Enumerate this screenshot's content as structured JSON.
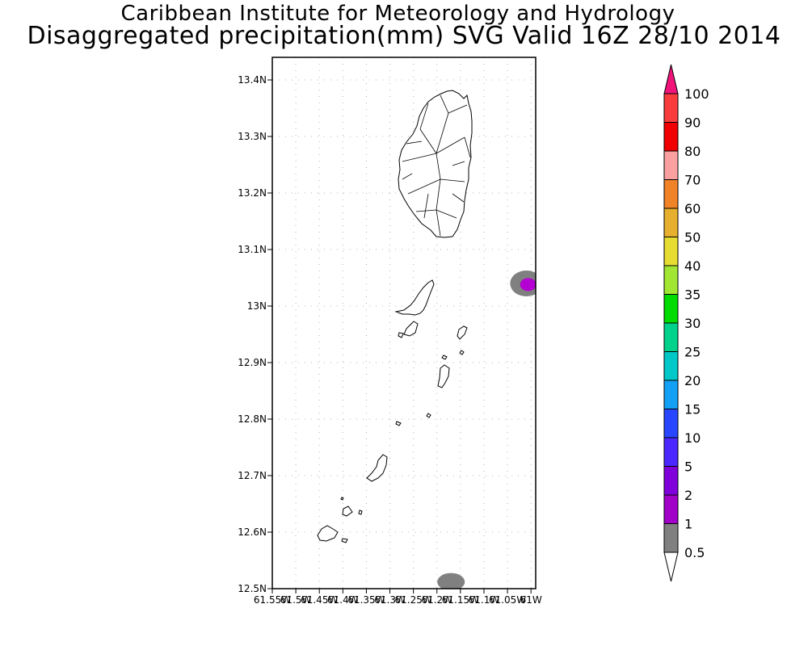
{
  "header": {
    "title_line1": "Caribbean Institute for Meteorology and Hydrology",
    "title_line2": "Disaggregated precipitation(mm) SVG Valid 16Z 28/10 2014"
  },
  "map": {
    "region": "St. Vincent and the Grenadines",
    "lat_ticks": [
      "12.5N",
      "12.6N",
      "12.7N",
      "12.8N",
      "12.9N",
      "13N",
      "13.1N",
      "13.2N",
      "13.3N",
      "13.4N"
    ],
    "lat_values": [
      12.5,
      12.6,
      12.7,
      12.8,
      12.9,
      13.0,
      13.1,
      13.2,
      13.3,
      13.4
    ],
    "lon_ticks": [
      "61.55W",
      "61.5W",
      "61.45W",
      "61.4W",
      "61.35W",
      "61.3W",
      "61.25W",
      "61.2W",
      "61.15W",
      "61.1W",
      "61.05W",
      "61W"
    ],
    "lon_values": [
      -61.55,
      -61.5,
      -61.45,
      -61.4,
      -61.35,
      -61.3,
      -61.25,
      -61.2,
      -61.15,
      -61.1,
      -61.05,
      -61.0
    ],
    "lat_range": [
      12.5,
      13.44
    ],
    "lon_range": [
      -61.55,
      -60.99
    ],
    "grid": true,
    "precip_areas": [
      {
        "lon": -61.01,
        "lat": 13.04,
        "class": "0.5-1",
        "color": "#808080"
      },
      {
        "lon": -61.006,
        "lat": 13.038,
        "class": "1-2",
        "color": "#b400d2"
      },
      {
        "lon": -61.17,
        "lat": 12.512,
        "class": "0.5-1",
        "color": "#808080"
      }
    ]
  },
  "colorbar": {
    "labels": [
      "0.5",
      "1",
      "2",
      "5",
      "10",
      "15",
      "20",
      "25",
      "30",
      "35",
      "40",
      "50",
      "60",
      "70",
      "80",
      "90",
      "100"
    ],
    "colors": [
      "#808080",
      "#a000c8",
      "#8000dc",
      "#4b28ff",
      "#2846ff",
      "#14a0f5",
      "#00c8c8",
      "#00d28c",
      "#00dc00",
      "#a0e632",
      "#e6dc32",
      "#e6af2d",
      "#f08228",
      "#faa0a0",
      "#f00000",
      "#fa3c3c"
    ],
    "top_arrow_color": "#f0147a",
    "bottom_arrow_color": "#ffffff"
  }
}
